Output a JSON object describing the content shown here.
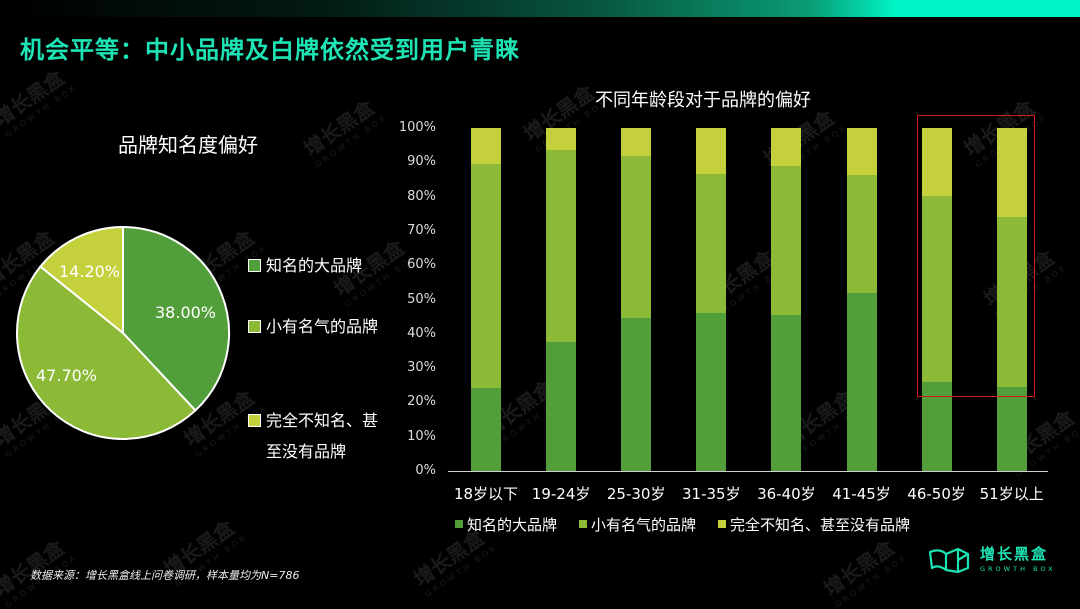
{
  "page": {
    "title": "机会平等：中小品牌及白牌依然受到用户青睐",
    "source_note": "数据来源：增长黑盒线上问卷调研，样本量均为N=786",
    "watermark_text": "增长黑盒",
    "watermark_sub": "GROWTH BOX"
  },
  "logo": {
    "name": "增长黑盒",
    "sub": "GROWTH BOX"
  },
  "colors": {
    "title": "#1de3b5",
    "famous": "#529e3a",
    "known": "#8cb936",
    "unknown": "#c4d13d",
    "highlight_box": "#d11a1a"
  },
  "pie": {
    "title": "品牌知名度偏好",
    "slices": [
      {
        "label": "知名的大品牌",
        "value_label": "38.00%"
      },
      {
        "label": "小有名气的品牌",
        "value_label": "47.70%"
      },
      {
        "label": "完全不知名、甚至没有品牌",
        "value_label": "14.20%"
      }
    ],
    "legend": [
      {
        "label": "知名的大品牌"
      },
      {
        "label": "小有名气的品牌"
      },
      {
        "label": "完全不知名、甚\n至没有品牌"
      }
    ]
  },
  "bar": {
    "title": "不同年龄段对于品牌的偏好",
    "y_ticks": [
      "100%",
      "90%",
      "80%",
      "70%",
      "60%",
      "50%",
      "40%",
      "30%",
      "20%",
      "10%",
      "0%"
    ],
    "categories": [
      "18岁以下",
      "19-24岁",
      "25-30岁",
      "31-35岁",
      "36-40岁",
      "41-45岁",
      "46-50岁",
      "51岁以上"
    ],
    "legend": [
      "知名的大品牌",
      "小有名气的品牌",
      "完全不知名、甚至没有品牌"
    ]
  },
  "chart_data": [
    {
      "type": "pie",
      "title": "品牌知名度偏好",
      "categories": [
        "知名的大品牌",
        "小有名气的品牌",
        "完全不知名、甚至没有品牌"
      ],
      "values": [
        38.0,
        47.7,
        14.2
      ],
      "unit": "%",
      "legend_position": "right"
    },
    {
      "type": "bar",
      "stacked": true,
      "percent_stacked": true,
      "title": "不同年龄段对于品牌的偏好",
      "categories": [
        "18岁以下",
        "19-24岁",
        "25-30岁",
        "31-35岁",
        "36-40岁",
        "41-45岁",
        "46-50岁",
        "51岁以上"
      ],
      "series": [
        {
          "name": "知名的大品牌",
          "values": [
            24.2,
            37.5,
            44.6,
            46.1,
            45.6,
            52.0,
            25.9,
            24.6
          ]
        },
        {
          "name": "小有名气的品牌",
          "values": [
            65.4,
            56.1,
            47.3,
            40.4,
            43.3,
            34.2,
            54.4,
            49.6
          ]
        },
        {
          "name": "完全不知名、甚至没有品牌",
          "values": [
            10.4,
            6.4,
            8.1,
            13.5,
            11.1,
            13.8,
            19.7,
            25.8
          ]
        }
      ],
      "xlabel": "",
      "ylabel": "",
      "ylim": [
        0,
        100
      ],
      "y_tick_format": "percent",
      "grid": false,
      "legend_position": "bottom",
      "annotations": [
        "red rectangle highlighting 46-50岁 and 51岁以上 upper segments"
      ]
    }
  ]
}
